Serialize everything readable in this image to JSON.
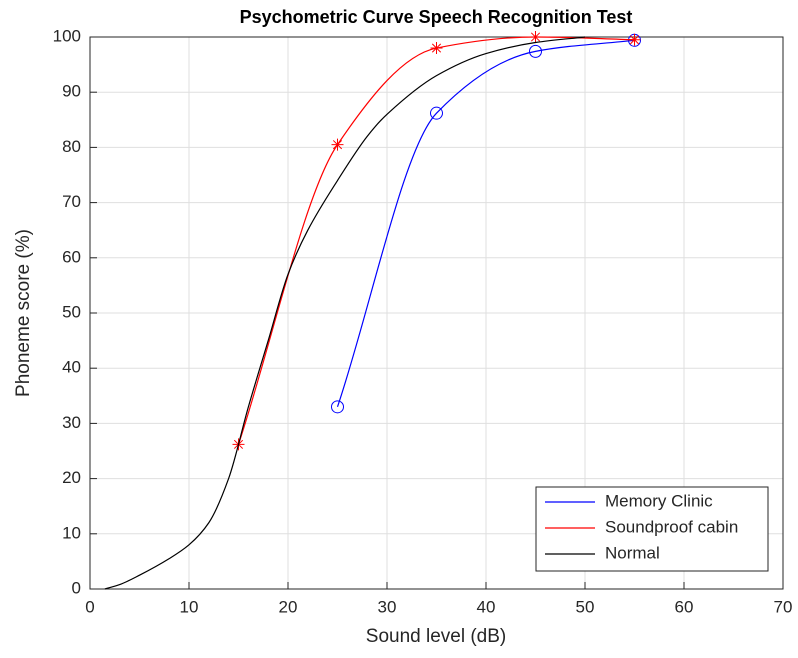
{
  "chart_data": {
    "type": "line",
    "title": "Psychometric Curve Speech Recognition Test",
    "xlabel": "Sound level (dB)",
    "ylabel": "Phoneme score (%)",
    "xlim": [
      0,
      70
    ],
    "xticks": [
      0,
      10,
      20,
      30,
      40,
      50,
      60,
      70
    ],
    "ylim": [
      0,
      100
    ],
    "yticks": [
      0,
      10,
      20,
      30,
      40,
      50,
      60,
      70,
      80,
      90,
      100
    ],
    "grid": true,
    "legend": "lower right",
    "series": [
      {
        "name": "Memory Clinic",
        "color": "#0000ff",
        "marker": "o",
        "x": [
          25,
          35,
          45,
          55
        ],
        "values": [
          33,
          86.2,
          97.4,
          99.4
        ]
      },
      {
        "name": "Soundproof cabin",
        "color": "#ff0000",
        "marker": "*",
        "x": [
          15,
          25,
          35,
          45,
          55
        ],
        "values": [
          26.2,
          80.5,
          98,
          100,
          99.5
        ]
      },
      {
        "name": "Normal",
        "color": "#000000",
        "marker": "none",
        "x": [
          1.5,
          3,
          5,
          8,
          10,
          12,
          14,
          16,
          18,
          20,
          22,
          25,
          28,
          30,
          35,
          40,
          45,
          50
        ],
        "values": [
          0,
          0.8,
          2.5,
          5.5,
          8,
          12,
          20,
          33,
          45,
          57,
          65,
          74,
          82,
          86,
          93,
          97,
          99,
          100
        ]
      }
    ]
  }
}
